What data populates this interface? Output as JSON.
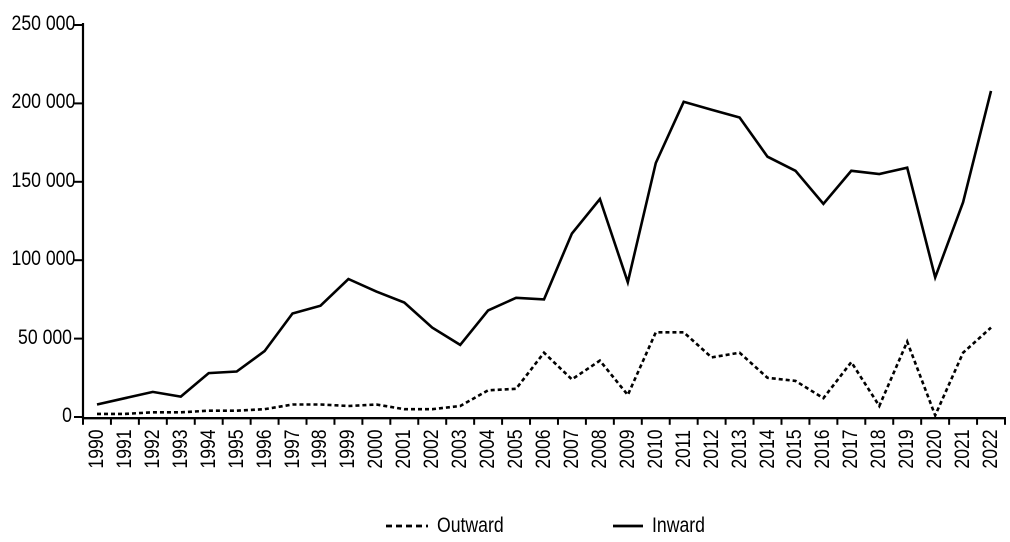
{
  "chart_data": {
    "type": "line",
    "title": "",
    "xlabel": "",
    "ylabel": "",
    "x": [
      "1990",
      "1991",
      "1992",
      "1993",
      "1994",
      "1995",
      "1996",
      "1997",
      "1998",
      "1999",
      "2000",
      "2001",
      "2002",
      "2003",
      "2004",
      "2005",
      "2006",
      "2007",
      "2008",
      "2009",
      "2010",
      "2011",
      "2012",
      "2013",
      "2014",
      "2015",
      "2016",
      "2017",
      "2018",
      "2019",
      "2020",
      "2021",
      "2022"
    ],
    "series": [
      {
        "name": "Outward",
        "line_style": "dashed",
        "color": "#000000",
        "values": [
          2000,
          2000,
          3000,
          3000,
          4000,
          4000,
          5000,
          8000,
          8000,
          7000,
          8000,
          5000,
          5000,
          7000,
          17000,
          18000,
          41000,
          24000,
          36000,
          14000,
          54000,
          54000,
          38000,
          41000,
          25000,
          23000,
          12000,
          35000,
          7000,
          48000,
          1000,
          41000,
          57000
        ]
      },
      {
        "name": "Inward",
        "line_style": "solid",
        "color": "#000000",
        "values": [
          8000,
          12000,
          16000,
          13000,
          28000,
          29000,
          42000,
          66000,
          71000,
          88000,
          80000,
          73000,
          57000,
          46000,
          68000,
          76000,
          75000,
          117000,
          139000,
          86000,
          162000,
          201000,
          196000,
          191000,
          166000,
          157000,
          136000,
          157000,
          155000,
          159000,
          89000,
          137000,
          208000
        ]
      }
    ],
    "ylim": [
      0,
      250000
    ],
    "ytick_interval": 50000,
    "ytick_labels": [
      "0",
      "50 000",
      "100 000",
      "150 000",
      "200 000",
      "250 000"
    ],
    "grid": false,
    "legend_position": "bottom-center",
    "axis_color": "#000000",
    "background_color": "#ffffff"
  }
}
